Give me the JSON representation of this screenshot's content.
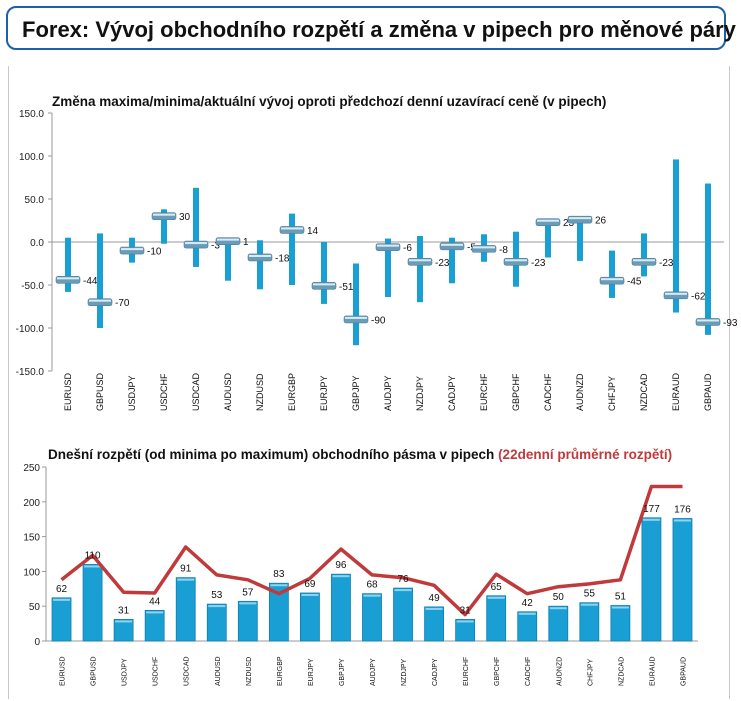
{
  "header": {
    "title": "Forex: Vývoj obchodního rozpětí a změna v pipech pro měnové páry"
  },
  "chart_data": [
    {
      "type": "bar",
      "title": "Změna maxima/minima/aktuální vývoj oproti předchozí denní uzavírací ceně (v pipech)",
      "ylim": [
        -150,
        150
      ],
      "yticks": [
        "150.0",
        "100.0",
        "50.0",
        "0.0",
        "-50.0",
        "-100.0",
        "-150.0"
      ],
      "grid": false,
      "categories": [
        "EURUSD",
        "GBPUSD",
        "USDJPY",
        "USDCHF",
        "USDCAD",
        "AUDUSD",
        "NZDUSD",
        "EURGBP",
        "EURJPY",
        "GBPJPY",
        "AUDJPY",
        "NZDJPY",
        "CADJPY",
        "EURCHF",
        "GBPCHF",
        "CADCHF",
        "AUDNZD",
        "CHFJPY",
        "NZDCAD",
        "EURAUD",
        "GBPAUD"
      ],
      "high": [
        5,
        10,
        5,
        38,
        63,
        5,
        2,
        33,
        0,
        -25,
        4,
        7,
        5,
        9,
        12,
        25,
        28,
        -10,
        10,
        96,
        68
      ],
      "low": [
        -58,
        -100,
        -24,
        -2,
        -29,
        -45,
        -55,
        -50,
        -72,
        -120,
        -64,
        -70,
        -48,
        -23,
        -52,
        -18,
        -22,
        -65,
        -40,
        -82,
        -108
      ],
      "current": [
        -44,
        -70,
        -10,
        30,
        -3,
        1,
        -18,
        14,
        -51,
        -90,
        -6,
        -23,
        -5,
        -8,
        -23,
        23,
        26,
        -45,
        -23,
        -62,
        -93
      ],
      "current_labels": [
        "-44",
        "-70",
        "-10",
        "30",
        "-3",
        "1",
        "-18",
        "14",
        "-51",
        "-90",
        "-6",
        "-23",
        "-5",
        "-8",
        "-23",
        "23",
        "26",
        "-45",
        "-23",
        "-62",
        "-93"
      ],
      "colors": {
        "range_bar": "#1a9fd4",
        "marker": "#6a9bb8",
        "marker_light": "#d9ecf6"
      }
    },
    {
      "type": "bar",
      "title": "Dnešní rozpětí (od minima po maximum) obchodního pásma v pipech",
      "title_suffix": "(22denní průměrné rozpětí)",
      "ylim": [
        0,
        250
      ],
      "yticks": [
        "250",
        "200",
        "150",
        "100",
        "50",
        "0"
      ],
      "grid": false,
      "categories": [
        "EURUSD",
        "GBPUSD",
        "USDJPY",
        "USDCHF",
        "USDCAD",
        "AUDUSD",
        "NZDUSD",
        "EURGBP",
        "EURJPY",
        "GBPJPY",
        "AUDJPY",
        "NZDJPY",
        "CADJPY",
        "EURCHF",
        "GBPCHF",
        "CADCHF",
        "AUDNZD",
        "CHFJPY",
        "NZDCAD",
        "EURAUD",
        "GBPAUD"
      ],
      "series": [
        {
          "name": "Dnešní rozpětí (od minima po maximum) obchodního pásma v pipech",
          "type": "bar",
          "values": [
            62,
            110,
            31,
            44,
            91,
            53,
            57,
            83,
            69,
            96,
            68,
            76,
            49,
            31,
            65,
            42,
            50,
            55,
            51,
            177,
            176
          ],
          "labels": [
            "62",
            "110",
            "31",
            "44",
            "91",
            "53",
            "57",
            "83",
            "69",
            "96",
            "68",
            "76",
            "49",
            "31",
            "65",
            "42",
            "50",
            "55",
            "51",
            "177",
            "176"
          ]
        },
        {
          "name": "22denní průměrné rozpětí",
          "type": "line",
          "values": [
            88,
            123,
            70,
            69,
            135,
            95,
            88,
            68,
            90,
            132,
            95,
            91,
            80,
            38,
            96,
            68,
            78,
            82,
            88,
            222,
            222
          ]
        }
      ],
      "colors": {
        "bar": "#1a9fd4",
        "bar_dark": "#0d7fae",
        "line": "#c0393b",
        "title_suffix": "#c0393b"
      }
    }
  ]
}
